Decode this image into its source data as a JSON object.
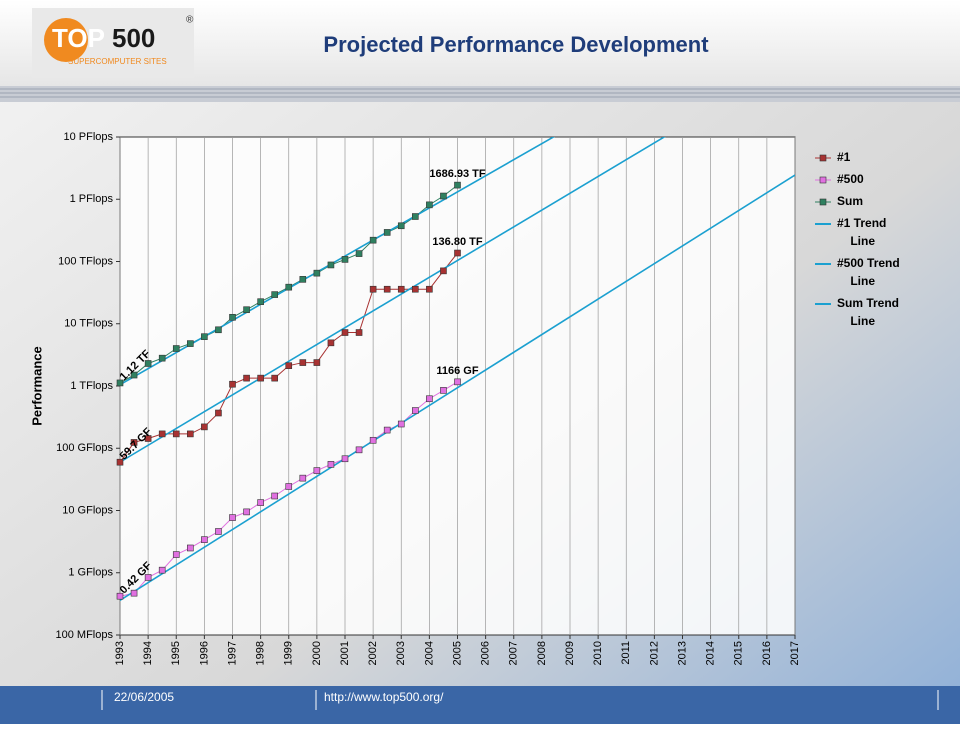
{
  "header": {
    "logo_top": "TOP",
    "logo_num": "500",
    "logo_sub": "SUPERCOMPUTER SITES",
    "title": "Projected Performance Development"
  },
  "chart_data": {
    "type": "line",
    "y_label": "Performance",
    "log_y": true,
    "grid": true,
    "legend": "right",
    "x": [
      1993,
      1993.5,
      1994,
      1994.5,
      1995,
      1995.5,
      1996,
      1996.5,
      1997,
      1997.5,
      1998,
      1998.5,
      1999,
      1999.5,
      2000,
      2000.5,
      2001,
      2001.5,
      2002,
      2002.5,
      2003,
      2003.5,
      2004,
      2004.5,
      2005
    ],
    "xlim": [
      1993,
      2017
    ],
    "xticks": [
      1993,
      1994,
      1995,
      1996,
      1997,
      1998,
      1999,
      2000,
      2001,
      2002,
      2003,
      2004,
      2005,
      2006,
      2007,
      2008,
      2009,
      2010,
      2011,
      2012,
      2013,
      2014,
      2015,
      2016,
      2017
    ],
    "ylim": [
      0.1,
      10000000
    ],
    "yticks": [
      {
        "value": 0.1,
        "label": "100 MFlops"
      },
      {
        "value": 1,
        "label": "1 GFlops"
      },
      {
        "value": 10,
        "label": "10 GFlops"
      },
      {
        "value": 100,
        "label": "100 GFlops"
      },
      {
        "value": 1000,
        "label": "1 TFlops"
      },
      {
        "value": 10000,
        "label": "10 TFlops"
      },
      {
        "value": 100000,
        "label": "100 TFlops"
      },
      {
        "value": 1000000,
        "label": "1 PFlops"
      },
      {
        "value": 10000000,
        "label": "10 PFlops"
      }
    ],
    "series": [
      {
        "name": "#1",
        "color": "#a83232",
        "marker": true,
        "values": [
          59.7,
          124,
          143.4,
          170,
          170,
          170,
          220.4,
          368.2,
          1068,
          1338,
          1338,
          1338,
          2121,
          2379,
          2379,
          4938,
          7226,
          7226,
          35860,
          35860,
          35860,
          35860,
          35860,
          70720,
          136800
        ],
        "value_labels": [
          "59.7 GF",
          null,
          null,
          null,
          null,
          null,
          null,
          null,
          null,
          null,
          null,
          null,
          null,
          null,
          null,
          null,
          null,
          null,
          null,
          null,
          null,
          null,
          null,
          null,
          "136.80 TF"
        ]
      },
      {
        "name": "#500",
        "color": "#e070e0",
        "marker": true,
        "values": [
          0.42,
          0.47,
          0.84,
          1.1,
          1.96,
          2.5,
          3.4,
          4.6,
          7.7,
          9.5,
          13.4,
          17.1,
          24.3,
          33.1,
          43.8,
          55.1,
          67.8,
          94.3,
          134.3,
          195.8,
          245.1,
          403.4,
          624,
          850,
          1166
        ],
        "value_labels": [
          "0.42 GF",
          null,
          null,
          null,
          null,
          null,
          null,
          null,
          null,
          null,
          null,
          null,
          null,
          null,
          null,
          null,
          null,
          null,
          null,
          null,
          null,
          null,
          null,
          null,
          "1166 GF"
        ]
      },
      {
        "name": "Sum",
        "color": "#2f8060",
        "marker": true,
        "values": [
          1120,
          1500,
          2300,
          2800,
          4000,
          4800,
          6200,
          8000,
          12700,
          16800,
          22600,
          29400,
          38700,
          51700,
          65000,
          88000,
          108000,
          134000,
          220000,
          293000,
          375000,
          528000,
          813000,
          1127000,
          1686930
        ],
        "value_labels": [
          "1.12 TF",
          null,
          null,
          null,
          null,
          null,
          null,
          null,
          null,
          null,
          null,
          null,
          null,
          null,
          null,
          null,
          null,
          null,
          null,
          null,
          null,
          null,
          null,
          null,
          "1686.93 TF"
        ]
      },
      {
        "name": "#1 Trend Line",
        "color": "#1ba0d0",
        "marker": false,
        "x": [
          1993,
          2017
        ],
        "values": [
          60,
          180000000
        ]
      },
      {
        "name": "#500 Trend Line",
        "color": "#1ba0d0",
        "marker": false,
        "x": [
          1993,
          2017
        ],
        "values": [
          0.36,
          2450000
        ]
      },
      {
        "name": "Sum Trend Line",
        "color": "#1ba0d0",
        "marker": false,
        "x": [
          1993,
          2017
        ],
        "values": [
          1050,
          1650000000
        ]
      }
    ]
  },
  "footer": {
    "date": "22/06/2005",
    "url": "http://www.top500.org/"
  }
}
